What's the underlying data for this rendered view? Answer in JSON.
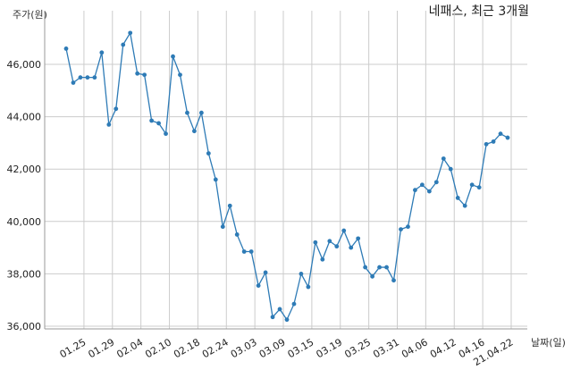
{
  "chart_data": {
    "type": "line",
    "title": "네패스, 최근 3개월",
    "ylabel": "주가(원)",
    "xlabel": "날짜(일)",
    "ylim": [
      35800,
      47500
    ],
    "yticks": [
      36000,
      38000,
      40000,
      42000,
      44000,
      46000
    ],
    "ytick_labels": [
      "36,000",
      "38,000",
      "40,000",
      "42,000",
      "44,000",
      "46,000"
    ],
    "xtick_labels": [
      "01.25",
      "01.29",
      "02.04",
      "02.10",
      "02.18",
      "02.24",
      "03.03",
      "03.09",
      "03.15",
      "03.19",
      "03.25",
      "03.31",
      "04.06",
      "04.12",
      "04.16",
      "21.04.22"
    ],
    "xtick_indices": [
      2.5,
      6.5,
      10.5,
      14.5,
      18.5,
      22.5,
      26.5,
      30.5,
      34.5,
      38.5,
      42.5,
      46.5,
      50.5,
      54.5,
      58.5,
      62.5
    ],
    "grid": true,
    "line_color": "#2e7bb6",
    "series": [
      {
        "values": [
          46600,
          45300,
          45500,
          45500,
          45500,
          46450,
          43700,
          44300,
          46750,
          47200,
          45650,
          45600,
          43850,
          43750,
          43350,
          46300,
          45600,
          44150,
          43450,
          44150,
          42600,
          41600,
          39800,
          40600,
          39500,
          38850,
          38850,
          37550,
          38050,
          36350,
          36650,
          36250,
          36850,
          38000,
          37500,
          39200,
          38550,
          39250,
          39050,
          39650,
          39000,
          39350,
          38250,
          37900,
          38250,
          38250,
          37750,
          39700,
          39800,
          41200,
          41400,
          41150,
          41500,
          42400,
          42000,
          40900,
          40600,
          41400,
          41300,
          42950,
          43050,
          43350,
          43200
        ]
      }
    ]
  }
}
